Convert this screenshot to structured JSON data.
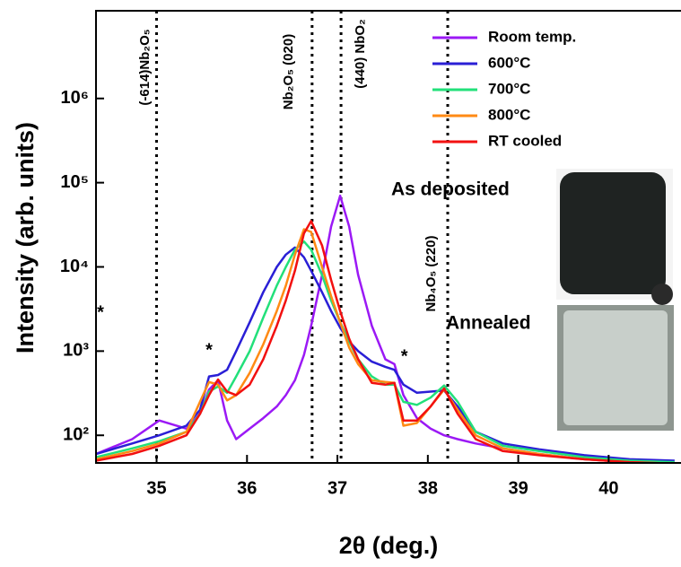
{
  "chart_data": {
    "type": "line",
    "xlabel": "2θ (deg.)",
    "ylabel": "Intensity (arb. units)",
    "log_y": true,
    "xlim": [
      34.33,
      40.8
    ],
    "ylim": [
      47,
      11000000
    ],
    "xticks": [
      35,
      36,
      37,
      38,
      39,
      40
    ],
    "yticks": [
      {
        "value": 100,
        "label": "10²"
      },
      {
        "value": 1000,
        "label": "10³"
      },
      {
        "value": 10000,
        "label": "10⁴"
      },
      {
        "value": 100000,
        "label": "10⁵"
      },
      {
        "value": 1000000,
        "label": "10⁶"
      }
    ],
    "legend": "upper right",
    "x": [
      34.33,
      34.73,
      35.03,
      35.33,
      35.48,
      35.58,
      35.68,
      35.78,
      35.88,
      36.03,
      36.18,
      36.33,
      36.43,
      36.53,
      36.63,
      36.71,
      36.83,
      36.93,
      37.03,
      37.13,
      37.23,
      37.38,
      37.53,
      37.63,
      37.73,
      37.88,
      38.03,
      38.18,
      38.33,
      38.53,
      38.83,
      39.23,
      39.73,
      40.23,
      40.73
    ],
    "series": [
      {
        "name": "Room temp.",
        "color": "#9b19f5",
        "values": [
          60,
          90,
          150,
          120,
          180,
          350,
          450,
          150,
          90,
          120,
          160,
          220,
          300,
          450,
          900,
          2000,
          8000,
          30000,
          70000,
          30000,
          8000,
          2000,
          800,
          700,
          300,
          160,
          120,
          100,
          90,
          80,
          70,
          60,
          52,
          48,
          46
        ]
      },
      {
        "name": "600°C",
        "color": "#2a1fd6",
        "values": [
          60,
          80,
          100,
          130,
          200,
          500,
          520,
          600,
          1000,
          2200,
          5000,
          10000,
          14000,
          17000,
          13000,
          9000,
          5000,
          3000,
          1900,
          1300,
          1000,
          750,
          650,
          600,
          400,
          320,
          330,
          340,
          220,
          110,
          80,
          68,
          58,
          52,
          50
        ]
      },
      {
        "name": "700°C",
        "color": "#22e07a",
        "values": [
          55,
          70,
          85,
          110,
          180,
          330,
          380,
          320,
          500,
          1000,
          2500,
          6000,
          10000,
          16000,
          20000,
          16000,
          8000,
          4000,
          2200,
          1300,
          800,
          500,
          400,
          400,
          250,
          230,
          280,
          390,
          250,
          110,
          75,
          65,
          55,
          50,
          48
        ]
      },
      {
        "name": "800°C",
        "color": "#ff8a14",
        "values": [
          52,
          65,
          80,
          110,
          250,
          430,
          400,
          260,
          300,
          550,
          1200,
          3000,
          6000,
          14000,
          28000,
          26000,
          10000,
          4500,
          2200,
          1100,
          700,
          450,
          430,
          420,
          130,
          140,
          220,
          350,
          200,
          100,
          70,
          60,
          52,
          48,
          46
        ]
      },
      {
        "name": "RT cooled",
        "color": "#f21010",
        "values": [
          50,
          60,
          75,
          100,
          180,
          300,
          460,
          330,
          300,
          400,
          800,
          2000,
          4000,
          9000,
          25000,
          35000,
          18000,
          7000,
          3000,
          1400,
          800,
          420,
          400,
          420,
          150,
          150,
          220,
          360,
          180,
          90,
          65,
          58,
          52,
          48,
          46
        ]
      }
    ],
    "reference_lines": [
      {
        "x": 35.0,
        "label": "(-614)Nb₂O₅"
      },
      {
        "x": 36.72,
        "label": "Nb₂O₅ (020)"
      },
      {
        "x": 37.04,
        "label": "(440) NbO₂"
      },
      {
        "x": 38.22,
        "label": "Nb₄O₅ (220)"
      }
    ],
    "markers": [
      {
        "x": 34.38,
        "y": 2800,
        "label": "*"
      },
      {
        "x": 35.58,
        "y": 1000,
        "label": "*"
      },
      {
        "x": 37.74,
        "y": 850,
        "label": "*"
      }
    ],
    "insets": [
      {
        "label": "As deposited"
      },
      {
        "label": "Annealed"
      }
    ]
  }
}
